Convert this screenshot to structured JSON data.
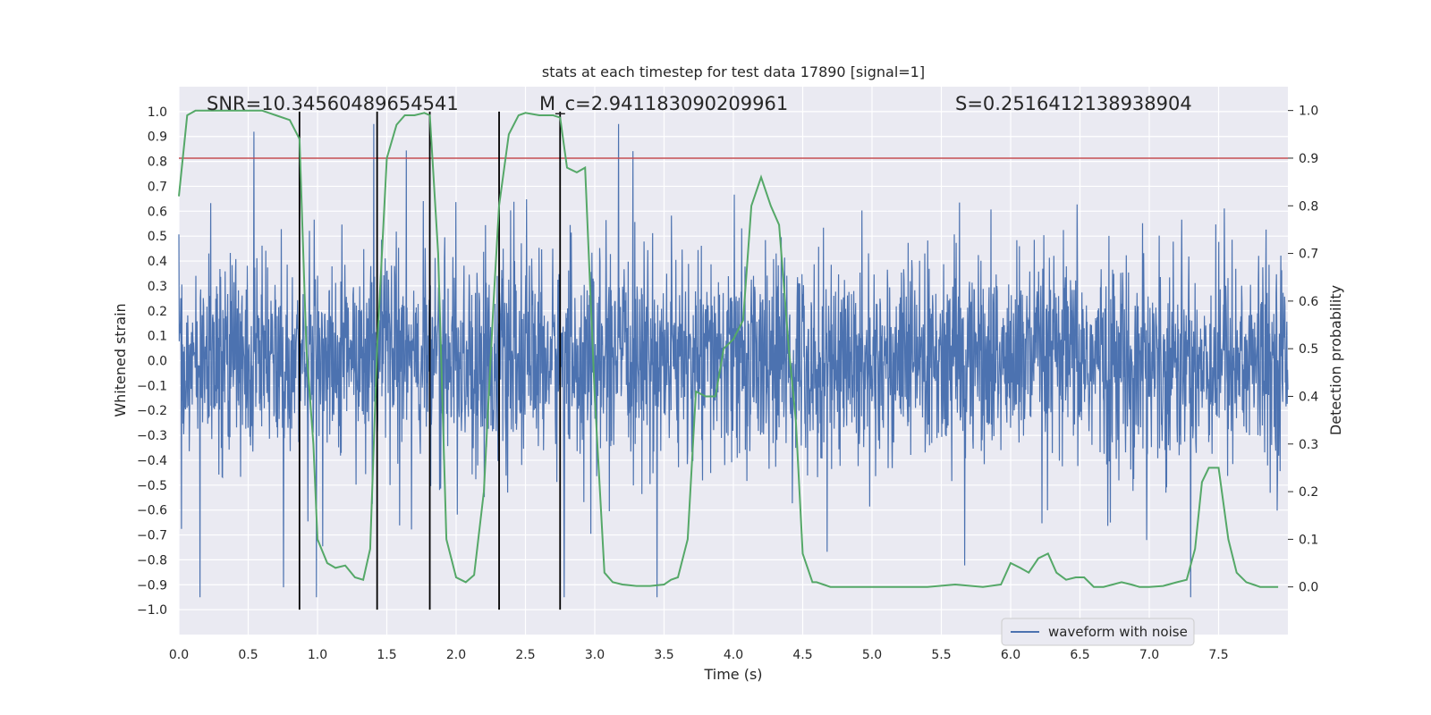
{
  "chart_data": {
    "type": "line",
    "title": "stats at each timestep for test data 17890 [signal=1]",
    "xlabel": "Time (s)",
    "ylabel": "Whitened strain",
    "ylabel_right": "Detection probability",
    "xlim": [
      0.0,
      8.0
    ],
    "ylim": [
      -1.1,
      1.1
    ],
    "ylim_right": [
      -0.1,
      1.05
    ],
    "x_ticks": [
      0.0,
      0.5,
      1.0,
      1.5,
      2.0,
      2.5,
      3.0,
      3.5,
      4.0,
      4.5,
      5.0,
      5.5,
      6.0,
      6.5,
      7.0,
      7.5
    ],
    "x_tick_labels": [
      "0.0",
      "0.5",
      "1.0",
      "1.5",
      "2.0",
      "2.5",
      "3.0",
      "3.5",
      "4.0",
      "4.5",
      "5.0",
      "5.5",
      "6.0",
      "6.5",
      "7.0",
      "7.5"
    ],
    "y_ticks": [
      1.0,
      0.9,
      0.8,
      0.7,
      0.6,
      0.5,
      0.4,
      0.3,
      0.2,
      0.1,
      0.0,
      -0.1,
      -0.2,
      -0.3,
      -0.4,
      -0.5,
      -0.6,
      -0.7,
      -0.8,
      -0.9,
      -1.0
    ],
    "y_tick_labels": [
      "1.0",
      "0.9",
      "0.8",
      "0.7",
      "0.6",
      "0.5",
      "0.4",
      "0.3",
      "0.2",
      "0.1",
      "0.0",
      "−0.1",
      "−0.2",
      "−0.3",
      "−0.4",
      "−0.5",
      "−0.6",
      "−0.7",
      "−0.8",
      "−0.9",
      "−1.0"
    ],
    "y_right_ticks": [
      1.0,
      0.9,
      0.8,
      0.7,
      0.6,
      0.5,
      0.4,
      0.3,
      0.2,
      0.1,
      0.0
    ],
    "y_right_tick_labels": [
      "1.0",
      "0.9",
      "0.8",
      "0.7",
      "0.6",
      "0.5",
      "0.4",
      "0.3",
      "0.2",
      "0.1",
      "0.0"
    ],
    "threshold": {
      "value": 0.9,
      "axis": "right",
      "color": "#c44e52"
    },
    "vertical_markers": [
      0.87,
      1.43,
      1.81,
      2.31,
      2.75
    ],
    "annotations": [
      {
        "text": "SNR=10.34560489654541",
        "x": 0.2
      },
      {
        "text": "M_c=2.941183090209961",
        "x": 2.6
      },
      {
        "text": "S=0.2516412138938904",
        "x": 5.6
      }
    ],
    "series": [
      {
        "name": "waveform with noise",
        "axis": "left",
        "color": "#4c72b0",
        "style": "dense noise, band roughly ±0.4 with spikes up to about ±0.95",
        "x_range": [
          0.0,
          8.0
        ]
      },
      {
        "name": "detection probability",
        "axis": "right",
        "color": "#55a868",
        "x": [
          0.0,
          0.06,
          0.12,
          0.2,
          0.3,
          0.4,
          0.5,
          0.6,
          0.7,
          0.8,
          0.87,
          0.92,
          0.97,
          1.0,
          1.07,
          1.13,
          1.2,
          1.27,
          1.33,
          1.38,
          1.43,
          1.5,
          1.57,
          1.63,
          1.7,
          1.77,
          1.81,
          1.87,
          1.93,
          2.0,
          2.07,
          2.13,
          2.2,
          2.27,
          2.31,
          2.38,
          2.45,
          2.5,
          2.6,
          2.7,
          2.75,
          2.8,
          2.87,
          2.93,
          3.0,
          3.07,
          3.13,
          3.2,
          3.3,
          3.4,
          3.5,
          3.55,
          3.6,
          3.67,
          3.73,
          3.8,
          3.87,
          3.93,
          4.0,
          4.07,
          4.13,
          4.2,
          4.27,
          4.33,
          4.4,
          4.45,
          4.5,
          4.57,
          4.6,
          4.7,
          4.8,
          5.0,
          5.2,
          5.4,
          5.6,
          5.8,
          5.93,
          6.0,
          6.07,
          6.13,
          6.2,
          6.27,
          6.33,
          6.4,
          6.47,
          6.53,
          6.6,
          6.67,
          6.8,
          6.87,
          6.93,
          7.0,
          7.1,
          7.2,
          7.27,
          7.33,
          7.38,
          7.43,
          7.5,
          7.57,
          7.63,
          7.7,
          7.8,
          7.93
        ],
        "y": [
          0.82,
          0.99,
          1.0,
          1.0,
          1.0,
          1.0,
          1.0,
          1.0,
          0.99,
          0.98,
          0.94,
          0.5,
          0.3,
          0.1,
          0.05,
          0.04,
          0.045,
          0.02,
          0.015,
          0.08,
          0.5,
          0.9,
          0.97,
          0.99,
          0.99,
          0.995,
          0.99,
          0.7,
          0.1,
          0.02,
          0.01,
          0.025,
          0.2,
          0.6,
          0.8,
          0.95,
          0.99,
          0.995,
          0.99,
          0.99,
          0.985,
          0.88,
          0.87,
          0.88,
          0.4,
          0.03,
          0.01,
          0.005,
          0.002,
          0.002,
          0.005,
          0.015,
          0.02,
          0.1,
          0.41,
          0.4,
          0.4,
          0.5,
          0.52,
          0.56,
          0.8,
          0.86,
          0.8,
          0.76,
          0.5,
          0.35,
          0.07,
          0.01,
          0.01,
          0.0,
          0.0,
          0.0,
          0.0,
          0.0,
          0.005,
          0.0,
          0.005,
          0.05,
          0.04,
          0.03,
          0.06,
          0.07,
          0.03,
          0.015,
          0.02,
          0.02,
          0.0,
          0.0,
          0.01,
          0.005,
          0.0,
          0.0,
          0.002,
          0.01,
          0.015,
          0.08,
          0.22,
          0.25,
          0.25,
          0.1,
          0.03,
          0.01,
          0.0,
          0.0
        ]
      }
    ],
    "legend": {
      "entries": [
        "waveform with noise"
      ],
      "placement": "lower-right"
    }
  }
}
